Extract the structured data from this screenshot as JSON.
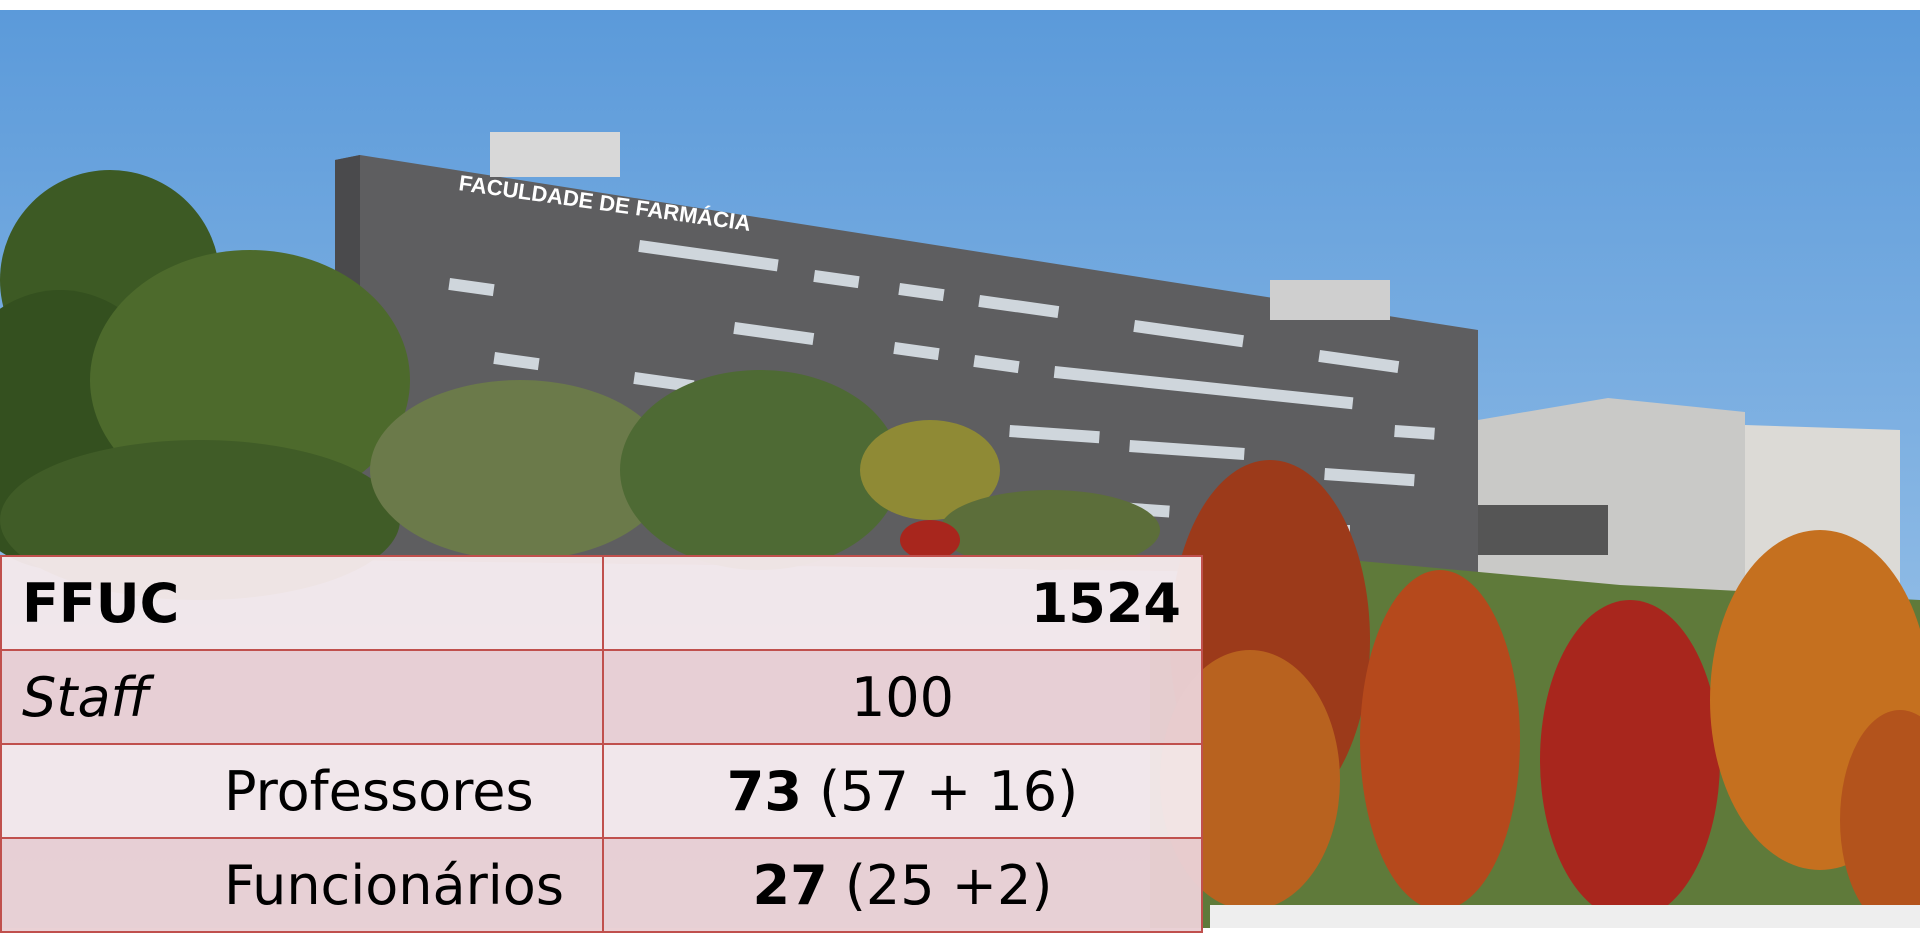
{
  "photo": {
    "sign": "FACULDADE DE FARMÁCIA"
  },
  "table": {
    "rows": [
      [
        "FFUC",
        "1524"
      ],
      [
        "Staff",
        "100"
      ],
      [
        "Professores",
        {
          "bold": "73",
          "rest": "(57 + 16)"
        }
      ],
      [
        "Funcionários",
        {
          "bold": "27",
          "rest": "(25 +2)"
        }
      ]
    ]
  }
}
